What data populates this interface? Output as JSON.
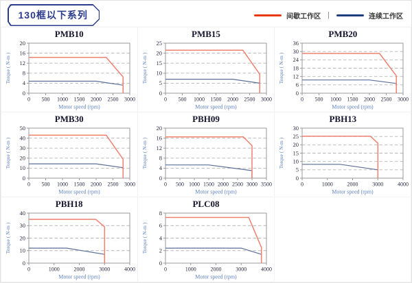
{
  "header": {
    "title": "130框以下系列"
  },
  "legend": {
    "items": [
      {
        "label": "间歇工作区",
        "color": "#e8380d"
      },
      {
        "label": "连续工作区",
        "color": "#1f3d7d"
      }
    ],
    "separator": "|"
  },
  "colors": {
    "header_navy": "#2a3a8c",
    "curve_red": "#ef8170",
    "curve_blue": "#5a6e96",
    "grid_line": "#b5b5b5",
    "plot_border": "#999999",
    "tick_label": "#2b2b44",
    "axis_title": "#5f82c0"
  },
  "chart_data": [
    {
      "type": "line",
      "title": "PMB10",
      "xlabel": "Motor speed (rpm)",
      "ylabel": "Torque ( N-m )",
      "xlim": [
        0,
        3000
      ],
      "ylim": [
        0,
        20
      ],
      "xticks": [
        0,
        500,
        1000,
        1500,
        2000,
        2500,
        3000
      ],
      "yticks": [
        0,
        4,
        8,
        12,
        16,
        20
      ],
      "grid": true,
      "legend_position": "none",
      "series": [
        {
          "name": "间歇工作区",
          "color": "#ef8170",
          "points": [
            [
              0,
              14.3
            ],
            [
              2300,
              14.3
            ],
            [
              2800,
              6.5
            ],
            [
              2800,
              0
            ]
          ]
        },
        {
          "name": "连续工作区",
          "color": "#5a6e96",
          "points": [
            [
              0,
              4.8
            ],
            [
              2000,
              4.8
            ],
            [
              2800,
              3.2
            ],
            [
              2800,
              0
            ]
          ]
        }
      ]
    },
    {
      "type": "line",
      "title": "PMB15",
      "xlabel": "Motor speed (rpm)",
      "ylabel": "Torque ( N-m )",
      "xlim": [
        0,
        3000
      ],
      "ylim": [
        0,
        25
      ],
      "xticks": [
        0,
        500,
        1000,
        1500,
        2000,
        2500,
        3000
      ],
      "yticks": [
        0,
        5,
        10,
        15,
        20,
        25
      ],
      "grid": true,
      "legend_position": "none",
      "series": [
        {
          "name": "间歇工作区",
          "color": "#ef8170",
          "points": [
            [
              0,
              21.5
            ],
            [
              2300,
              21.5
            ],
            [
              2800,
              9.5
            ],
            [
              2800,
              0
            ]
          ]
        },
        {
          "name": "连续工作区",
          "color": "#5a6e96",
          "points": [
            [
              0,
              7
            ],
            [
              2000,
              7
            ],
            [
              2800,
              5
            ],
            [
              2800,
              0
            ]
          ]
        }
      ]
    },
    {
      "type": "line",
      "title": "PMB20",
      "xlabel": "Motor speed (rpm)",
      "ylabel": "Torque ( N-m )",
      "xlim": [
        0,
        3000
      ],
      "ylim": [
        0,
        36
      ],
      "xticks": [
        0,
        500,
        1000,
        1500,
        2000,
        2500,
        3000
      ],
      "yticks": [
        0,
        6,
        12,
        18,
        24,
        30,
        36
      ],
      "grid": true,
      "legend_position": "none",
      "series": [
        {
          "name": "间歇工作区",
          "color": "#ef8170",
          "points": [
            [
              0,
              28.6
            ],
            [
              2300,
              28.6
            ],
            [
              2800,
              12.5
            ],
            [
              2800,
              0
            ]
          ]
        },
        {
          "name": "连续工作区",
          "color": "#5a6e96",
          "points": [
            [
              0,
              9.5
            ],
            [
              2000,
              9.5
            ],
            [
              2800,
              7
            ],
            [
              2800,
              0
            ]
          ]
        }
      ]
    },
    {
      "type": "line",
      "title": "PMB30",
      "xlabel": "Motor speed (rpm)",
      "ylabel": "Torque ( N-m )",
      "xlim": [
        0,
        3000
      ],
      "ylim": [
        0,
        50
      ],
      "xticks": [
        0,
        500,
        1000,
        1500,
        2000,
        2500,
        3000
      ],
      "yticks": [
        0,
        10,
        20,
        30,
        40,
        50
      ],
      "grid": true,
      "legend_position": "none",
      "series": [
        {
          "name": "间歇工作区",
          "color": "#ef8170",
          "points": [
            [
              0,
              43
            ],
            [
              2300,
              43
            ],
            [
              2800,
              19
            ],
            [
              2800,
              0
            ]
          ]
        },
        {
          "name": "连续工作区",
          "color": "#5a6e96",
          "points": [
            [
              0,
              14.3
            ],
            [
              2000,
              14.3
            ],
            [
              2800,
              10.5
            ],
            [
              2800,
              0
            ]
          ]
        }
      ]
    },
    {
      "type": "line",
      "title": "PBH09",
      "xlabel": "Motor speed (rpm)",
      "ylabel": "Torque ( N-m )",
      "xlim": [
        0,
        3500
      ],
      "ylim": [
        0,
        20
      ],
      "xticks": [
        0,
        500,
        1000,
        1500,
        2000,
        2500,
        3000,
        3500
      ],
      "yticks": [
        0,
        4,
        8,
        12,
        16,
        20
      ],
      "grid": true,
      "legend_position": "none",
      "series": [
        {
          "name": "间歇工作区",
          "color": "#ef8170",
          "points": [
            [
              0,
              16.5
            ],
            [
              2700,
              16.5
            ],
            [
              3000,
              13
            ],
            [
              3000,
              0
            ]
          ]
        },
        {
          "name": "连续工作区",
          "color": "#5a6e96",
          "points": [
            [
              0,
              5.3
            ],
            [
              1500,
              5.3
            ],
            [
              3000,
              3
            ],
            [
              3000,
              0
            ]
          ]
        }
      ]
    },
    {
      "type": "line",
      "title": "PBH13",
      "xlabel": "Motor speed (rpm)",
      "ylabel": "Torque ( N-m )",
      "xlim": [
        0,
        4000
      ],
      "ylim": [
        0,
        30
      ],
      "xticks": [
        0,
        1000,
        2000,
        3000,
        4000
      ],
      "yticks": [
        0,
        5,
        10,
        15,
        20,
        25,
        30
      ],
      "grid": true,
      "legend_position": "none",
      "series": [
        {
          "name": "间歇工作区",
          "color": "#ef8170",
          "points": [
            [
              0,
              25.2
            ],
            [
              2700,
              25.2
            ],
            [
              3000,
              21
            ],
            [
              3000,
              0
            ]
          ]
        },
        {
          "name": "连续工作区",
          "color": "#5a6e96",
          "points": [
            [
              0,
              8.3
            ],
            [
              1500,
              8.3
            ],
            [
              3000,
              5
            ],
            [
              3000,
              0
            ]
          ]
        }
      ]
    },
    {
      "type": "line",
      "title": "PBH18",
      "xlabel": "Motor speed (rpm)",
      "ylabel": "Torque ( N-m )",
      "xlim": [
        0,
        4000
      ],
      "ylim": [
        0,
        40
      ],
      "xticks": [
        0,
        1000,
        2000,
        3000,
        4000
      ],
      "yticks": [
        0,
        10,
        20,
        30,
        40
      ],
      "grid": true,
      "legend_position": "none",
      "series": [
        {
          "name": "间歇工作区",
          "color": "#ef8170",
          "points": [
            [
              0,
              35
            ],
            [
              2650,
              35
            ],
            [
              3000,
              29
            ],
            [
              3000,
              0
            ]
          ]
        },
        {
          "name": "连续工作区",
          "color": "#5a6e96",
          "points": [
            [
              0,
              12
            ],
            [
              1500,
              12
            ],
            [
              3000,
              7
            ],
            [
              3000,
              0
            ]
          ]
        }
      ]
    },
    {
      "type": "line",
      "title": "PLC08",
      "xlabel": "Motor speed (rpm)",
      "ylabel": "Torque ( N-m )",
      "xlim": [
        0,
        4000
      ],
      "ylim": [
        0,
        8
      ],
      "xticks": [
        0,
        1000,
        2000,
        3000,
        4000
      ],
      "yticks": [
        0,
        2,
        4,
        6,
        8
      ],
      "grid": true,
      "legend_position": "none",
      "series": [
        {
          "name": "间歇工作区",
          "color": "#ef8170",
          "points": [
            [
              0,
              7.3
            ],
            [
              3300,
              7.3
            ],
            [
              3800,
              2.5
            ],
            [
              3800,
              0
            ]
          ]
        },
        {
          "name": "连续工作区",
          "color": "#5a6e96",
          "points": [
            [
              0,
              2.4
            ],
            [
              3000,
              2.4
            ],
            [
              3800,
              1.4
            ],
            [
              3800,
              0
            ]
          ]
        }
      ]
    }
  ]
}
